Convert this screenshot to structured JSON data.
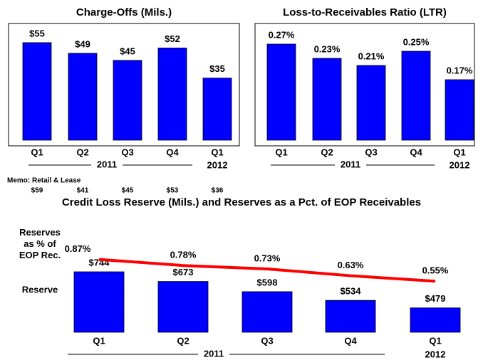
{
  "chart_data": [
    {
      "type": "bar",
      "title": "Charge-Offs (Mils.)",
      "categories": [
        "Q1",
        "Q2",
        "Q3",
        "Q4",
        "Q1"
      ],
      "values": [
        55,
        49,
        45,
        52,
        35
      ],
      "value_labels": [
        "$55",
        "$49",
        "$45",
        "$52",
        "$35"
      ],
      "color": "#0000ff",
      "ylim": [
        0,
        65
      ],
      "period_labels": [
        "2011",
        "2012"
      ],
      "memo_title": "Memo: Retail & Lease",
      "memo_values": [
        "$59",
        "$41",
        "$45",
        "$53",
        "$36"
      ]
    },
    {
      "type": "bar",
      "title": "Loss-to-Receivables Ratio (LTR)",
      "categories": [
        "Q1",
        "Q2",
        "Q3",
        "Q4",
        "Q1"
      ],
      "values": [
        0.27,
        0.23,
        0.21,
        0.25,
        0.17
      ],
      "value_labels": [
        "0.27%",
        "0.23%",
        "0.21%",
        "0.25%",
        "0.17%"
      ],
      "color": "#0000ff",
      "ylim": [
        0,
        0.32
      ],
      "period_labels": [
        "2011",
        "2012"
      ]
    },
    {
      "type": "bar",
      "title": "Credit Loss Reserve (Mils.) and Reserves as a Pct. of EOP Receivables",
      "categories": [
        "Q1",
        "Q2",
        "Q3",
        "Q4",
        "Q1"
      ],
      "period_labels": [
        "2011",
        "2012"
      ],
      "ylim": [
        300,
        1000
      ],
      "y2lim": [
        -0.2,
        1.2
      ],
      "series": [
        {
          "name": "Reserve",
          "type": "bar",
          "color": "#0000ff",
          "values": [
            744,
            673,
            598,
            534,
            479
          ],
          "value_labels": [
            "$744",
            "$673",
            "$598",
            "$534",
            "$479"
          ]
        },
        {
          "name": "Reserves as % of EOP Rec.",
          "type": "line",
          "axis": "y2",
          "color": "#ff0000",
          "values": [
            0.87,
            0.78,
            0.73,
            0.63,
            0.55
          ],
          "value_labels": [
            "0.87%",
            "0.78%",
            "0.73%",
            "0.63%",
            "0.55%"
          ]
        }
      ]
    }
  ]
}
